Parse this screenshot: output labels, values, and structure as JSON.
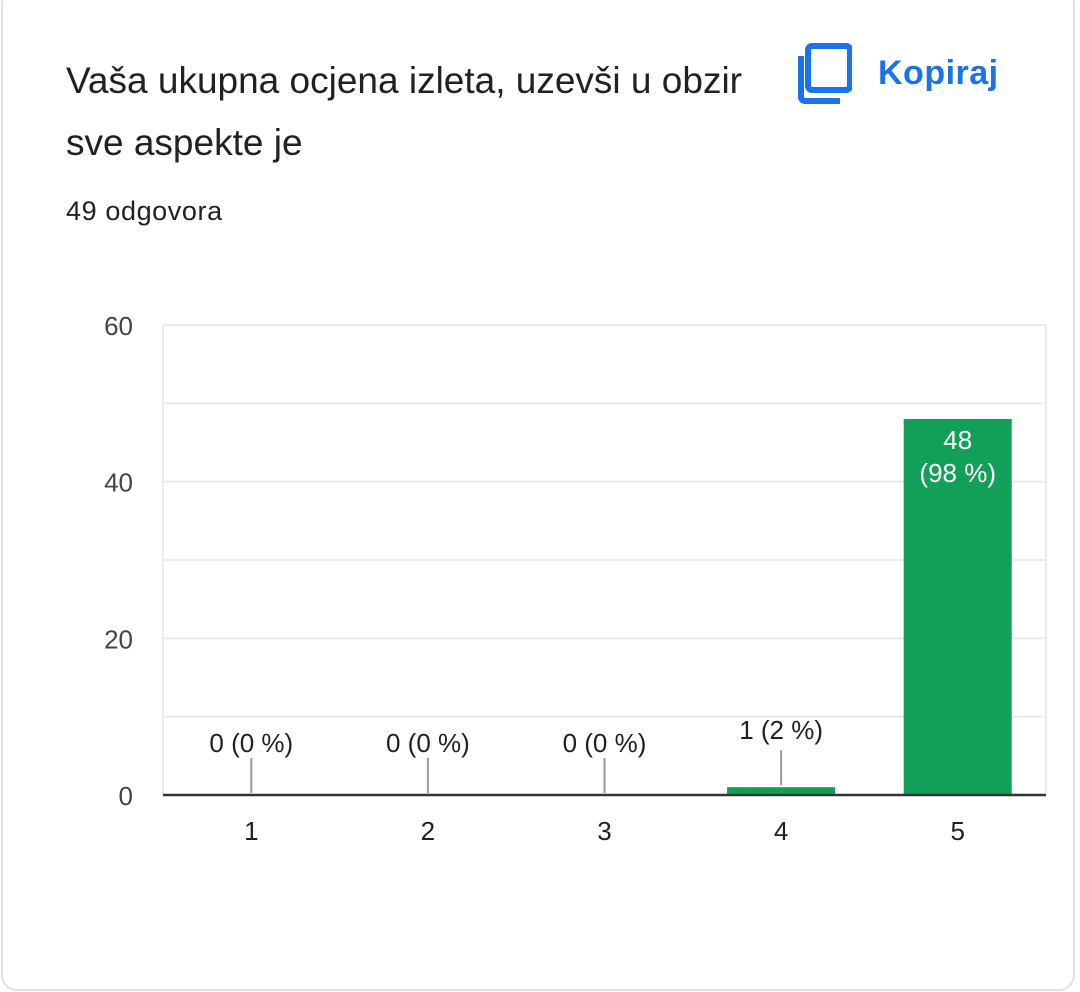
{
  "card": {
    "title": "Vaša ukupna ocjena izleta, uzevši u obzir sve aspekte je",
    "copy_label": "Kopiraj",
    "copy_icon": "copy-icon",
    "responses_text": "49 odgovora"
  },
  "colors": {
    "bar": "#12a058",
    "accent": "#1a73e8",
    "text": "#202124",
    "axis_text": "#444444",
    "grid": "#ebebeb"
  },
  "chart_data": {
    "type": "bar",
    "categories": [
      "1",
      "2",
      "3",
      "4",
      "5"
    ],
    "values": [
      0,
      0,
      0,
      1,
      48
    ],
    "percents": [
      "0 %",
      "0 %",
      "0 %",
      "2 %",
      "98 %"
    ],
    "data_labels": [
      [
        "0 (0 %)"
      ],
      [
        "0 (0 %)"
      ],
      [
        "0 (0 %)"
      ],
      [
        "1 (2 %)"
      ],
      [
        "48",
        "(98 %)"
      ]
    ],
    "y_ticks": [
      "60",
      "40",
      "20",
      "0"
    ],
    "ylim": [
      0,
      60
    ],
    "grid": true,
    "title": "",
    "xlabel": "",
    "ylabel": ""
  }
}
